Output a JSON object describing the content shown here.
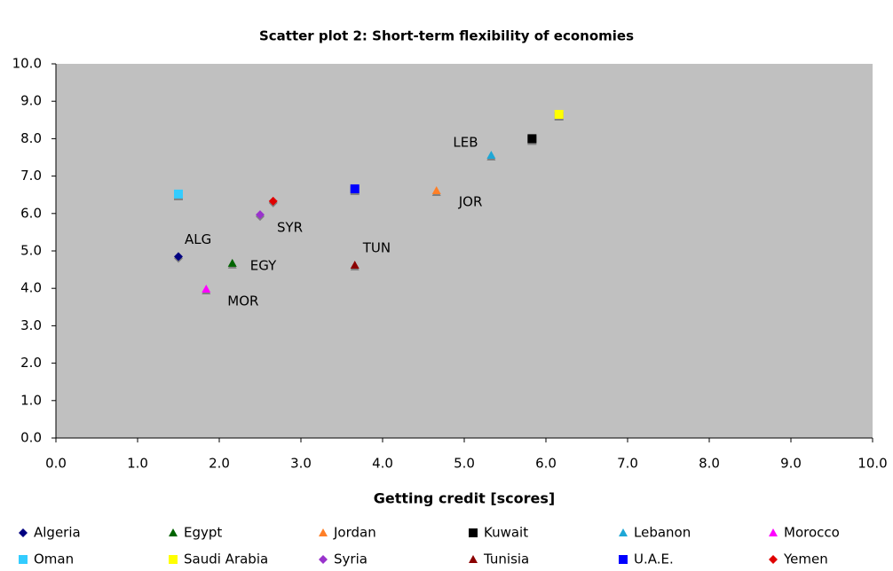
{
  "chart_data": {
    "type": "scatter",
    "title": "Scatter plot 2: Short-term flexibility of economies",
    "xlabel": "Getting credit [scores]",
    "xlim": [
      0,
      10
    ],
    "ylim": [
      0,
      10
    ],
    "xticks": [
      {
        "value": 0,
        "label": "0.0"
      },
      {
        "value": 1,
        "label": "1.0"
      },
      {
        "value": 2,
        "label": "2.0"
      },
      {
        "value": 3,
        "label": "3.0"
      },
      {
        "value": 4,
        "label": "4.0"
      },
      {
        "value": 5,
        "label": "5.0"
      },
      {
        "value": 6,
        "label": "6.0"
      },
      {
        "value": 7,
        "label": "7.0"
      },
      {
        "value": 8,
        "label": "8.0"
      },
      {
        "value": 9,
        "label": "9.0"
      },
      {
        "value": 10,
        "label": "10.0"
      }
    ],
    "yticks": [
      {
        "value": 0,
        "label": "0.0"
      },
      {
        "value": 1,
        "label": "1.0"
      },
      {
        "value": 2,
        "label": "2.0"
      },
      {
        "value": 3,
        "label": "3.0"
      },
      {
        "value": 4,
        "label": "4.0"
      },
      {
        "value": 5,
        "label": "5.0"
      },
      {
        "value": 6,
        "label": "6.0"
      },
      {
        "value": 7,
        "label": "7.0"
      },
      {
        "value": 8,
        "label": "8.0"
      },
      {
        "value": 9,
        "label": "9.0"
      },
      {
        "value": 10,
        "label": "10.0"
      }
    ],
    "grid": false,
    "legend": "bottom",
    "plot_background": "#c0c0c0",
    "series": [
      {
        "name": "Algeria",
        "color": "#000080",
        "marker": "diamond",
        "label": "ALG",
        "x": [
          1.5
        ],
        "values": [
          4.85
        ]
      },
      {
        "name": "Egypt",
        "color": "#006400",
        "marker": "triangle",
        "label": "EGY",
        "x": [
          2.16
        ],
        "values": [
          4.67
        ]
      },
      {
        "name": "Jordan",
        "color": "#ff7f27",
        "marker": "triangle",
        "label": "JOR",
        "x": [
          4.66
        ],
        "values": [
          6.61
        ]
      },
      {
        "name": "Kuwait",
        "color": "#000000",
        "marker": "square",
        "x": [
          5.83
        ],
        "values": [
          8.0
        ]
      },
      {
        "name": "Lebanon",
        "color": "#1ea7d6",
        "marker": "triangle",
        "label": "LEB",
        "x": [
          5.33
        ],
        "values": [
          7.56
        ]
      },
      {
        "name": "Morocco",
        "color": "#ff00ff",
        "marker": "triangle",
        "label": "MOR",
        "x": [
          1.84
        ],
        "values": [
          3.98
        ]
      },
      {
        "name": "Oman",
        "color": "#33ccff",
        "marker": "square",
        "x": [
          1.5
        ],
        "values": [
          6.52
        ]
      },
      {
        "name": "Saudi Arabia",
        "color": "#ffff00",
        "marker": "square",
        "x": [
          6.16
        ],
        "values": [
          8.65
        ]
      },
      {
        "name": "Syria",
        "color": "#9933cc",
        "marker": "diamond",
        "label": "SYR",
        "x": [
          2.5
        ],
        "values": [
          5.97
        ]
      },
      {
        "name": "Tunisia",
        "color": "#8b0000",
        "marker": "triangle",
        "label": "TUN",
        "x": [
          3.66
        ],
        "values": [
          4.62
        ]
      },
      {
        "name": "U.A.E.",
        "color": "#0000ff",
        "marker": "square",
        "x": [
          3.66
        ],
        "values": [
          6.66
        ]
      },
      {
        "name": "Yemen",
        "color": "#e00000",
        "marker": "diamond",
        "x": [
          2.66
        ],
        "values": [
          6.33
        ]
      }
    ]
  }
}
